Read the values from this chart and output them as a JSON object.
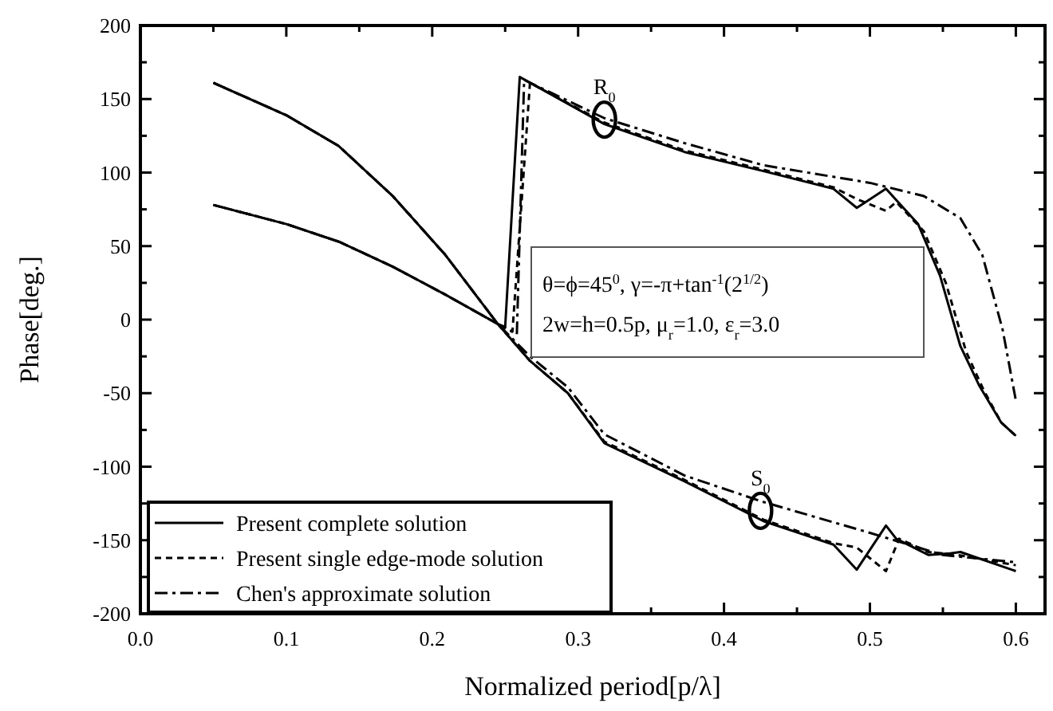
{
  "chart_data": {
    "type": "line",
    "xlabel": "Normalized period[p/λ]",
    "ylabel": "Phase[deg.]",
    "xlim": [
      0,
      0.62
    ],
    "ylim": [
      -200,
      200
    ],
    "xticks": [
      {
        "value": 0,
        "label": "0.0"
      },
      {
        "value": 0.05,
        "label": null
      },
      0.1,
      {
        "value": 0.15,
        "label": null
      },
      0.2,
      {
        "value": 0.25,
        "label": null
      },
      0.3,
      {
        "value": 0.35,
        "label": null
      },
      0.4,
      {
        "value": 0.45,
        "label": null
      },
      0.5,
      {
        "value": 0.55,
        "label": null
      },
      0.6
    ],
    "yticks": [
      -200,
      {
        "value": -175,
        "label": null
      },
      -150,
      {
        "value": -125,
        "label": null
      },
      -100,
      {
        "value": -75,
        "label": null
      },
      -50,
      {
        "value": -25,
        "label": null
      },
      0,
      {
        "value": 25,
        "label": null
      },
      50,
      {
        "value": 75,
        "label": null
      },
      100,
      {
        "value": 125,
        "label": null
      },
      150,
      {
        "value": 175,
        "label": null
      },
      200
    ],
    "legend": "bottom left",
    "series": [
      {
        "name": "Present complete solution",
        "color": "#000000",
        "line_style": "solid",
        "x": [
          0.05,
          0.1,
          0.136,
          0.173,
          0.209,
          0.245,
          0.25,
          0.26,
          0.318,
          0.373,
          0.427,
          0.475,
          0.491,
          0.511,
          0.533,
          0.548,
          0.562,
          0.575,
          0.59,
          0.6
        ],
        "values": [
          78,
          65,
          53,
          36,
          17,
          -3,
          -5,
          165,
          133,
          114,
          101,
          89,
          76,
          89,
          65,
          30,
          -18,
          -45,
          -70,
          -79
        ]
      },
      {
        "name": "Present single edge-mode solution",
        "color": "#000000",
        "line_style": "dashed",
        "x": [
          0.05,
          0.1,
          0.136,
          0.173,
          0.209,
          0.245,
          0.255,
          0.267,
          0.318,
          0.373,
          0.427,
          0.475,
          0.491,
          0.511,
          0.518,
          0.537,
          0.552,
          0.566,
          0.578,
          0.59,
          0.6
        ],
        "values": [
          78,
          65,
          53,
          36,
          17,
          -3,
          -8,
          161,
          134,
          115,
          102,
          90,
          82,
          74,
          80,
          60,
          25,
          -22,
          -48,
          -70,
          -79
        ]
      },
      {
        "name": "Chen's approximate solution",
        "color": "#000000",
        "line_style": "dotdash",
        "x": [
          0.05,
          0.1,
          0.136,
          0.173,
          0.209,
          0.245,
          0.258,
          0.263,
          0.318,
          0.373,
          0.427,
          0.5,
          0.537,
          0.562,
          0.577,
          0.591,
          0.6
        ],
        "values": [
          78,
          65,
          53,
          36,
          17,
          -3,
          -10,
          163,
          137,
          120,
          105,
          93,
          84,
          69,
          44,
          -7,
          -55
        ]
      },
      {
        "color": "#000000",
        "line_style": "solid",
        "x": [
          0.05,
          0.1,
          0.136,
          0.173,
          0.209,
          0.245,
          0.267,
          0.293,
          0.318,
          0.373,
          0.427,
          0.475,
          0.491,
          0.511,
          0.518,
          0.54,
          0.555,
          0.562,
          0.6
        ],
        "values": [
          161,
          139,
          118,
          84,
          44,
          -3,
          -28,
          -50,
          -84,
          -110,
          -137,
          -153,
          -170,
          -140,
          -149,
          -160,
          -159,
          -158,
          -171
        ]
      },
      {
        "color": "#000000",
        "line_style": "dashed",
        "x": [
          0.05,
          0.1,
          0.136,
          0.173,
          0.209,
          0.245,
          0.267,
          0.293,
          0.318,
          0.373,
          0.427,
          0.475,
          0.491,
          0.511,
          0.52,
          0.54,
          0.56,
          0.6
        ],
        "values": [
          161,
          139,
          118,
          84,
          44,
          -3,
          -28,
          -50,
          -83,
          -109,
          -136,
          -152,
          -155,
          -171,
          -149,
          -158,
          -160,
          -167
        ]
      },
      {
        "color": "#000000",
        "line_style": "dotdash",
        "x": [
          0.05,
          0.1,
          0.136,
          0.173,
          0.209,
          0.245,
          0.267,
          0.293,
          0.318,
          0.373,
          0.427,
          0.5,
          0.55,
          0.6
        ],
        "values": [
          161,
          139,
          118,
          84,
          44,
          -3,
          -25,
          -46,
          -78,
          -106,
          -124,
          -145,
          -160,
          -165
        ]
      }
    ],
    "annotations": [
      {
        "text": "R$_{0}$",
        "x": 0.318,
        "y": 136
      },
      {
        "text": "S$_{0}$",
        "x": 0.425,
        "y": -130
      },
      "θ=ϕ=45$^{0}$, γ=-π+tan$^{-1}$(2$^{1/2}$)",
      "2w=h=0.5p, μ$_{r}$=1.0, ε$_{r}$=3.0"
    ]
  }
}
